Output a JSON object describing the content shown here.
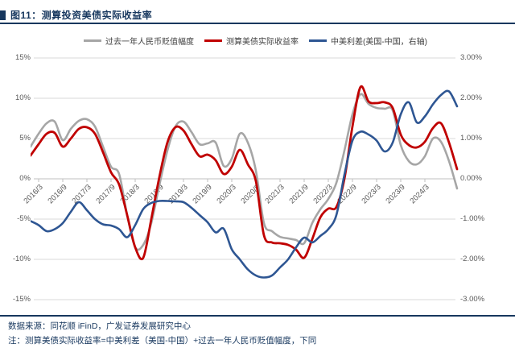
{
  "figure": {
    "title": "图11：测算投资美债实际收益率",
    "source": "数据来源：同花顺 iFinD，广发证券发展研究中心",
    "note": "注：测算美债实际收益率=中美利差（美国-中国）+过去一年人民币贬值幅度，下同"
  },
  "colors": {
    "accent_navy": "#17375e",
    "grid": "#d9d9d9",
    "zero_axis": "#bfbfbf",
    "axis_text": "#595959",
    "series_gray": "#a6a6a6",
    "series_red": "#c00000",
    "series_blue": "#2e5693"
  },
  "chart_data": {
    "type": "line",
    "title": "测算投资美债实际收益率",
    "legend_position": "top",
    "grid": "horizontal",
    "x": [
      "2016/1",
      "2016/3",
      "2016/5",
      "2016/7",
      "2016/9",
      "2016/11",
      "2017/1",
      "2017/3",
      "2017/5",
      "2017/7",
      "2017/9",
      "2017/11",
      "2018/1",
      "2018/3",
      "2018/5",
      "2018/7",
      "2018/9",
      "2018/11",
      "2019/1",
      "2019/3",
      "2019/5",
      "2019/7",
      "2019/9",
      "2019/11",
      "2020/1",
      "2020/3",
      "2020/5",
      "2020/7",
      "2020/9",
      "2020/11",
      "2021/1",
      "2021/3",
      "2021/5",
      "2021/7",
      "2021/9",
      "2021/11",
      "2022/1",
      "2022/3",
      "2022/5",
      "2022/7",
      "2022/9",
      "2022/11",
      "2023/1",
      "2023/3",
      "2023/5",
      "2023/7",
      "2023/9",
      "2023/11",
      "2024/1",
      "2024/3",
      "2024/5",
      "2024/7",
      "2024/9",
      "2024/11"
    ],
    "x_tick_labels": [
      "2016/3",
      "2016/9",
      "2017/3",
      "2017/9",
      "2018/3",
      "2018/9",
      "2019/3",
      "2019/9",
      "2020/3",
      "2020/9",
      "2021/3",
      "2021/9",
      "2022/3",
      "2022/9",
      "2023/3",
      "2023/9",
      "2024/3"
    ],
    "left_axis": {
      "unit": "%",
      "min": -15,
      "max": 15,
      "ticks": [
        "15%",
        "10%",
        "5%",
        "0%",
        "-5%",
        "-10%",
        "-15%"
      ]
    },
    "right_axis": {
      "unit": "%",
      "min": -3,
      "max": 3,
      "ticks": [
        "3.00%",
        "2.00%",
        "1.00%",
        "0.00%",
        "-1.00%",
        "-2.00%",
        "-3.00%"
      ]
    },
    "series": [
      {
        "name": "过去一年人民币贬值幅度",
        "axis": "left",
        "color": "#a6a6a6",
        "values": [
          4.0,
          5.6,
          6.9,
          7.1,
          4.8,
          6.2,
          7.2,
          7.4,
          6.5,
          4.0,
          1.5,
          0.6,
          -4.5,
          -8.5,
          -8.2,
          -5.5,
          -0.8,
          3.5,
          6.5,
          7.1,
          5.8,
          4.3,
          4.4,
          4.5,
          1.6,
          2.5,
          5.6,
          4.5,
          1.0,
          -5.5,
          -6.5,
          -7.2,
          -7.4,
          -7.6,
          -8.0,
          -5.5,
          -3.8,
          -2.5,
          -0.5,
          3.5,
          8.0,
          10.5,
          9.3,
          8.8,
          8.7,
          8.5,
          4.2,
          2.2,
          1.8,
          2.8,
          5.0,
          4.6,
          2.2,
          -1.2
        ]
      },
      {
        "name": "测算美债实际收益率",
        "axis": "left",
        "color": "#c00000",
        "values": [
          2.9,
          4.3,
          5.6,
          5.7,
          4.0,
          5.0,
          6.2,
          6.4,
          5.6,
          3.3,
          0.8,
          -0.7,
          -4.5,
          -8.5,
          -9.8,
          -5.0,
          0.2,
          4.5,
          6.4,
          6.0,
          4.3,
          2.8,
          3.0,
          2.3,
          0.6,
          1.5,
          3.6,
          1.8,
          -0.3,
          -7.0,
          -7.9,
          -8.0,
          -8.2,
          -8.8,
          -9.8,
          -7.5,
          -4.8,
          -3.7,
          -3.5,
          0.0,
          6.5,
          11.4,
          9.6,
          9.4,
          9.5,
          8.8,
          5.5,
          4.2,
          3.9,
          4.6,
          6.3,
          6.9,
          4.5,
          1.2
        ]
      },
      {
        "name": "中美利差(美国-中国，右轴)",
        "axis": "right",
        "color": "#2e5693",
        "values": [
          -1.05,
          -1.15,
          -1.3,
          -1.25,
          -1.1,
          -0.82,
          -0.58,
          -0.78,
          -1.0,
          -1.13,
          -1.16,
          -1.25,
          -1.45,
          -1.15,
          -0.75,
          -0.6,
          -0.55,
          -0.55,
          -0.56,
          -0.58,
          -0.72,
          -0.9,
          -1.08,
          -1.33,
          -1.24,
          -1.75,
          -2.0,
          -2.25,
          -2.4,
          -2.45,
          -2.4,
          -2.2,
          -2.0,
          -1.7,
          -1.46,
          -1.58,
          -1.42,
          -1.25,
          -0.9,
          0.1,
          0.95,
          1.17,
          1.1,
          0.95,
          0.68,
          0.9,
          1.6,
          1.9,
          1.4,
          1.55,
          1.85,
          2.08,
          2.17,
          1.8
        ]
      }
    ]
  }
}
